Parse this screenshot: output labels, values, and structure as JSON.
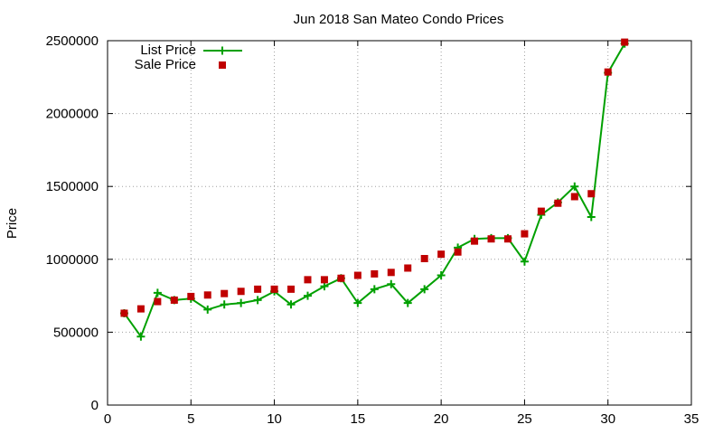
{
  "chart_data": {
    "type": "line",
    "title": "Jun 2018 San Mateo Condo Prices",
    "xlabel": "",
    "ylabel": "Price",
    "xlim": [
      0,
      35
    ],
    "ylim": [
      0,
      2500000
    ],
    "xticks": [
      0,
      5,
      10,
      15,
      20,
      25,
      30,
      35
    ],
    "yticks": [
      0,
      500000,
      1000000,
      1500000,
      2000000,
      2500000
    ],
    "grid": true,
    "legend_position": "top-left",
    "series": [
      {
        "name": "List Price",
        "style": "line-with-plus-markers",
        "color": "#00a000",
        "x": [
          1,
          2,
          3,
          4,
          5,
          6,
          7,
          8,
          9,
          10,
          11,
          12,
          13,
          14,
          15,
          16,
          17,
          18,
          19,
          20,
          21,
          22,
          23,
          24,
          25,
          26,
          27,
          28,
          29,
          30,
          31
        ],
        "y": [
          630000,
          470000,
          770000,
          720000,
          730000,
          655000,
          690000,
          700000,
          720000,
          780000,
          690000,
          750000,
          815000,
          870000,
          700000,
          795000,
          830000,
          700000,
          795000,
          890000,
          1080000,
          1140000,
          1145000,
          1145000,
          985000,
          1305000,
          1390000,
          1500000,
          1290000,
          2280000,
          2480000
        ]
      },
      {
        "name": "Sale Price",
        "style": "square-markers",
        "color": "#c00000",
        "x": [
          1,
          2,
          3,
          4,
          5,
          6,
          7,
          8,
          9,
          10,
          11,
          12,
          13,
          14,
          15,
          16,
          17,
          18,
          19,
          20,
          21,
          22,
          23,
          24,
          25,
          26,
          27,
          28,
          29,
          30,
          31
        ],
        "y": [
          630000,
          660000,
          710000,
          720000,
          745000,
          755000,
          765000,
          780000,
          795000,
          795000,
          795000,
          860000,
          860000,
          870000,
          890000,
          900000,
          910000,
          940000,
          1005000,
          1035000,
          1050000,
          1125000,
          1140000,
          1140000,
          1175000,
          1330000,
          1385000,
          1430000,
          1450000,
          2285000,
          2490000
        ]
      }
    ]
  }
}
